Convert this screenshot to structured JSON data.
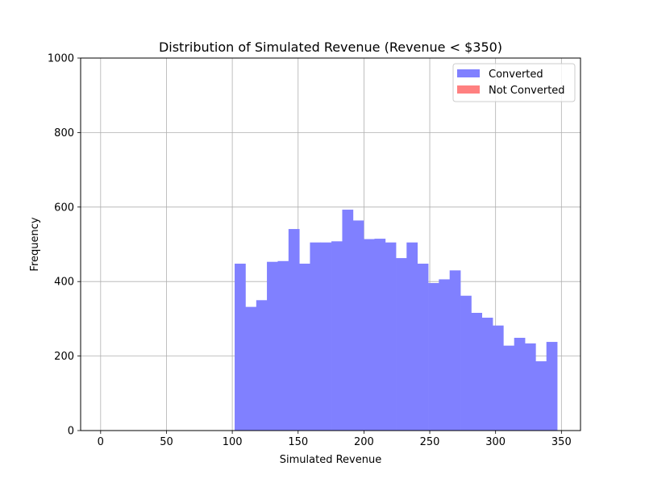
{
  "chart_data": {
    "type": "bar",
    "title": "Distribution of Simulated Revenue (Revenue < $350)",
    "xlabel": "Simulated Revenue",
    "ylabel": "Frequency",
    "xlim": [
      -15.2,
      364.5
    ],
    "ylim": [
      0,
      1000
    ],
    "x_ticks": [
      0,
      50,
      100,
      150,
      200,
      250,
      300,
      350
    ],
    "y_ticks": [
      0,
      200,
      400,
      600,
      800,
      1000
    ],
    "grid": true,
    "legend_position": "top-right",
    "series": [
      {
        "name": "Converted",
        "color": "#8080ff",
        "bin_width": 8.16,
        "bins": [
          {
            "x": 101.8,
            "value": 448
          },
          {
            "x": 110.0,
            "value": 332
          },
          {
            "x": 118.2,
            "value": 350
          },
          {
            "x": 126.3,
            "value": 453
          },
          {
            "x": 134.5,
            "value": 455
          },
          {
            "x": 142.7,
            "value": 541
          },
          {
            "x": 150.8,
            "value": 448
          },
          {
            "x": 159.0,
            "value": 505
          },
          {
            "x": 167.1,
            "value": 505
          },
          {
            "x": 175.3,
            "value": 508
          },
          {
            "x": 183.5,
            "value": 593
          },
          {
            "x": 191.6,
            "value": 564
          },
          {
            "x": 199.8,
            "value": 514
          },
          {
            "x": 208.0,
            "value": 515
          },
          {
            "x": 216.1,
            "value": 505
          },
          {
            "x": 224.3,
            "value": 463
          },
          {
            "x": 232.4,
            "value": 505
          },
          {
            "x": 240.6,
            "value": 448
          },
          {
            "x": 248.8,
            "value": 396
          },
          {
            "x": 256.9,
            "value": 406
          },
          {
            "x": 265.1,
            "value": 430
          },
          {
            "x": 273.3,
            "value": 362
          },
          {
            "x": 281.4,
            "value": 316
          },
          {
            "x": 289.6,
            "value": 303
          },
          {
            "x": 297.7,
            "value": 282
          },
          {
            "x": 305.9,
            "value": 228
          },
          {
            "x": 314.1,
            "value": 249
          },
          {
            "x": 322.2,
            "value": 234
          },
          {
            "x": 330.4,
            "value": 186
          },
          {
            "x": 338.6,
            "value": 238
          }
        ]
      },
      {
        "name": "Not Converted",
        "color": "#ff8080",
        "bins": []
      }
    ]
  }
}
